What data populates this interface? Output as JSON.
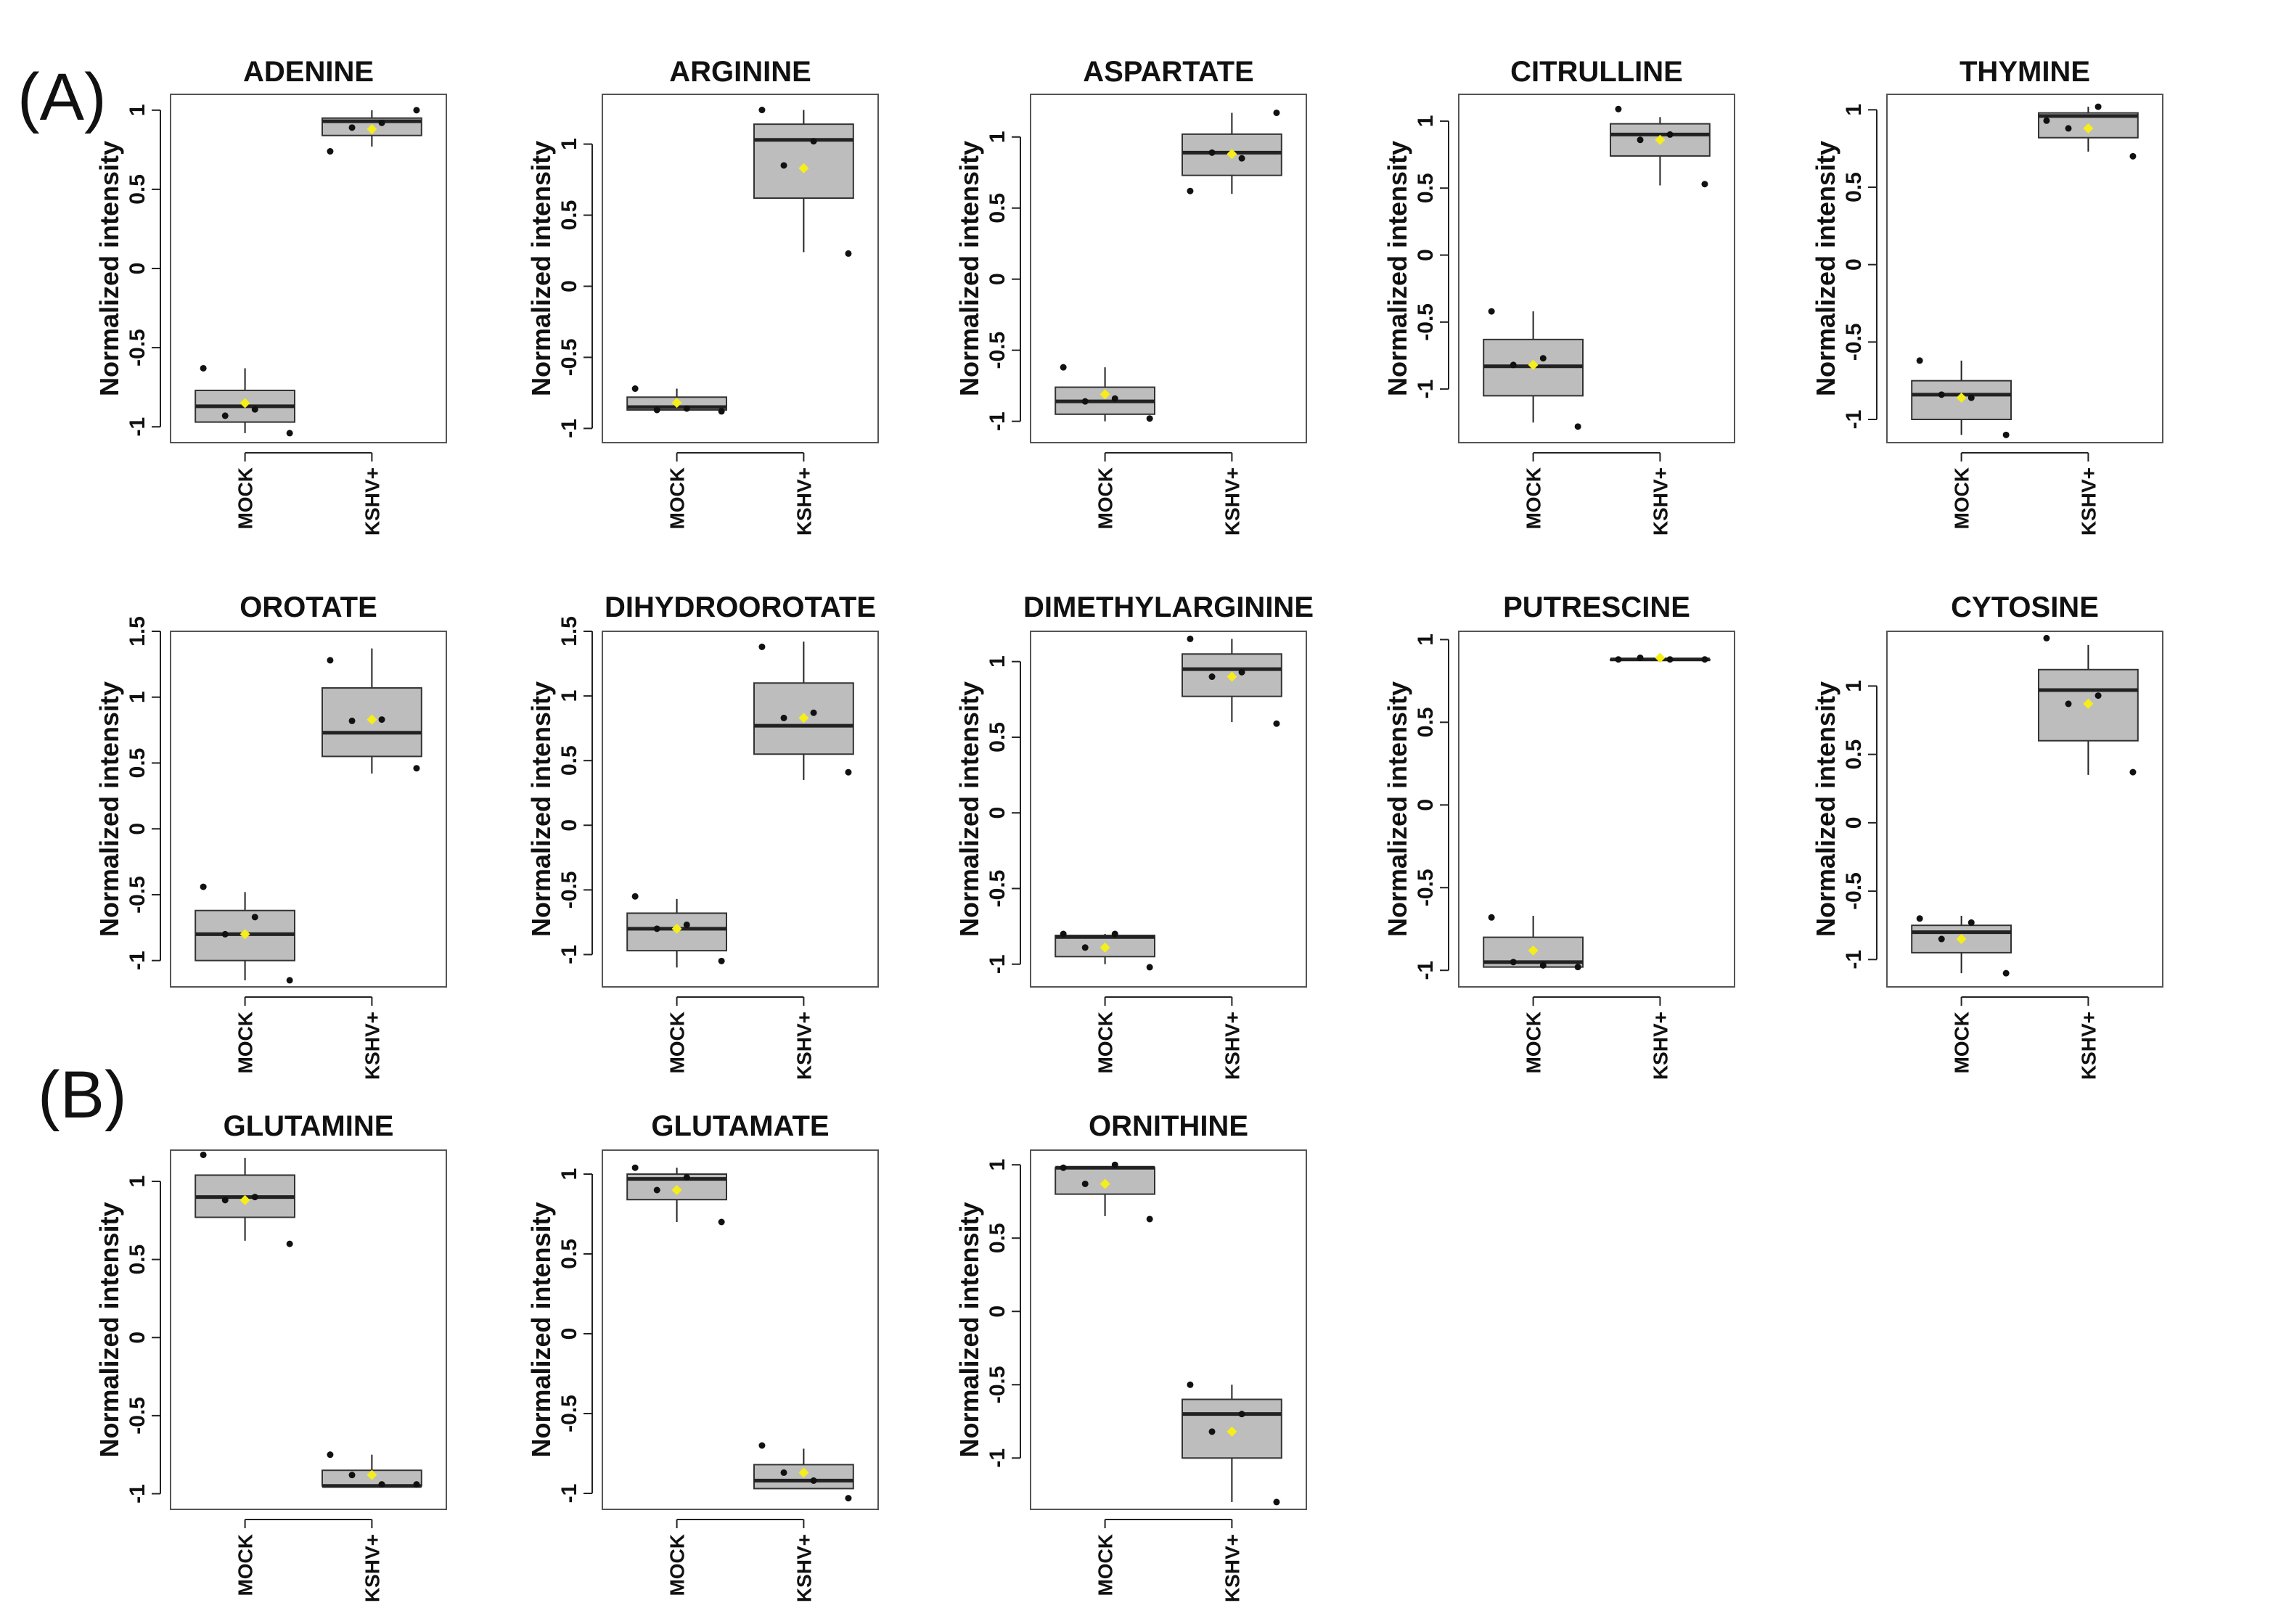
{
  "panel_labels": [
    "(A)",
    "(B)"
  ],
  "chart_data": [
    {
      "type": "box",
      "title": "ADENINE",
      "ylabel": "Normalized intensity",
      "ylim": [
        -1.1,
        1.1
      ],
      "yticks": [
        -1,
        -0.5,
        0,
        0.5,
        1
      ],
      "tick_labels": [
        "-1",
        "-0.5",
        "0",
        "0.5",
        "1"
      ],
      "categories": [
        "MOCK",
        "KSHV+"
      ],
      "boxes": [
        {
          "q1": -0.97,
          "median": -0.87,
          "q3": -0.77,
          "whisker_low": -1.04,
          "whisker_high": -0.63,
          "mean": -0.85,
          "points": [
            -0.63,
            -0.89,
            -1.04,
            -0.93
          ]
        },
        {
          "q1": 0.84,
          "median": 0.93,
          "q3": 0.95,
          "whisker_low": 0.77,
          "whisker_high": 1.0,
          "mean": 0.88,
          "points": [
            0.74,
            0.92,
            1.0,
            0.89
          ]
        }
      ]
    },
    {
      "type": "box",
      "title": "ARGININE",
      "ylabel": "Normalized intensity",
      "ylim": [
        -1.1,
        1.35
      ],
      "yticks": [
        -1,
        -0.5,
        0,
        0.5,
        1
      ],
      "tick_labels": [
        "-1",
        "-0.5",
        "0",
        "0.5",
        "1"
      ],
      "categories": [
        "MOCK",
        "KSHV+"
      ],
      "boxes": [
        {
          "q1": -0.87,
          "median": -0.85,
          "q3": -0.78,
          "whisker_low": -0.87,
          "whisker_high": -0.72,
          "mean": -0.82,
          "points": [
            -0.72,
            -0.86,
            -0.88,
            -0.87
          ]
        },
        {
          "q1": 0.62,
          "median": 1.03,
          "q3": 1.14,
          "whisker_low": 0.24,
          "whisker_high": 1.24,
          "mean": 0.83,
          "points": [
            1.24,
            1.02,
            0.23,
            0.85
          ]
        }
      ]
    },
    {
      "type": "box",
      "title": "ASPARTATE",
      "ylabel": "Normalized intensity",
      "ylim": [
        -1.15,
        1.3
      ],
      "yticks": [
        -1,
        -0.5,
        0,
        0.5,
        1
      ],
      "tick_labels": [
        "-1",
        "-0.5",
        "0",
        "0.5",
        "1"
      ],
      "categories": [
        "MOCK",
        "KSHV+"
      ],
      "boxes": [
        {
          "q1": -0.95,
          "median": -0.86,
          "q3": -0.76,
          "whisker_low": -1.0,
          "whisker_high": -0.62,
          "mean": -0.81,
          "points": [
            -0.62,
            -0.84,
            -0.98,
            -0.86
          ]
        },
        {
          "q1": 0.73,
          "median": 0.89,
          "q3": 1.02,
          "whisker_low": 0.6,
          "whisker_high": 1.17,
          "mean": 0.88,
          "points": [
            0.62,
            0.85,
            1.17,
            0.89
          ]
        }
      ]
    },
    {
      "type": "box",
      "title": "CITRULLINE",
      "ylabel": "Normalized intensity",
      "ylim": [
        -1.4,
        1.2
      ],
      "yticks": [
        -1,
        -0.5,
        0,
        0.5,
        1
      ],
      "tick_labels": [
        "-1",
        "-0.5",
        "0",
        "0.5",
        "1"
      ],
      "categories": [
        "MOCK",
        "KSHV+"
      ],
      "boxes": [
        {
          "q1": -1.05,
          "median": -0.83,
          "q3": -0.63,
          "whisker_low": -1.25,
          "whisker_high": -0.42,
          "mean": -0.82,
          "points": [
            -0.42,
            -0.77,
            -1.28,
            -0.82
          ]
        },
        {
          "q1": 0.74,
          "median": 0.9,
          "q3": 0.98,
          "whisker_low": 0.52,
          "whisker_high": 1.03,
          "mean": 0.86,
          "points": [
            1.09,
            0.9,
            0.53,
            0.86
          ]
        }
      ]
    },
    {
      "type": "box",
      "title": "THYMINE",
      "ylabel": "Normalized intensity",
      "ylim": [
        -1.15,
        1.1
      ],
      "yticks": [
        -1,
        -0.5,
        0,
        0.5,
        1
      ],
      "tick_labels": [
        "-1",
        "-0.5",
        "0",
        "0.5",
        "1"
      ],
      "categories": [
        "MOCK",
        "KSHV+"
      ],
      "boxes": [
        {
          "q1": -1.0,
          "median": -0.84,
          "q3": -0.75,
          "whisker_low": -1.1,
          "whisker_high": -0.62,
          "mean": -0.86,
          "points": [
            -0.62,
            -0.86,
            -1.1,
            -0.84
          ]
        },
        {
          "q1": 0.82,
          "median": 0.96,
          "q3": 0.98,
          "whisker_low": 0.73,
          "whisker_high": 1.02,
          "mean": 0.88,
          "points": [
            0.93,
            1.02,
            0.7,
            0.88
          ]
        }
      ]
    },
    {
      "type": "box",
      "title": "OROTATE",
      "ylabel": "Normalized intensity",
      "ylim": [
        -1.2,
        1.5
      ],
      "yticks": [
        -1,
        -0.5,
        0,
        0.5,
        1,
        1.5
      ],
      "tick_labels": [
        "-1",
        "-0.5",
        "0",
        "0.5",
        "1",
        "1.5"
      ],
      "categories": [
        "MOCK",
        "KSHV+"
      ],
      "boxes": [
        {
          "q1": -1.0,
          "median": -0.8,
          "q3": -0.62,
          "whisker_low": -1.15,
          "whisker_high": -0.48,
          "mean": -0.8,
          "points": [
            -0.44,
            -0.67,
            -1.15,
            -0.8
          ]
        },
        {
          "q1": 0.55,
          "median": 0.73,
          "q3": 1.07,
          "whisker_low": 0.42,
          "whisker_high": 1.37,
          "mean": 0.83,
          "points": [
            1.28,
            0.83,
            0.46,
            0.82
          ]
        }
      ]
    },
    {
      "type": "box",
      "title": "DIHYDROOROTATE",
      "ylabel": "Normalized intensity",
      "ylim": [
        -1.25,
        1.5
      ],
      "yticks": [
        -1,
        -0.5,
        0,
        0.5,
        1,
        1.5
      ],
      "tick_labels": [
        "-1",
        "-0.5",
        "0",
        "0.5",
        "1",
        "1.5"
      ],
      "categories": [
        "MOCK",
        "KSHV+"
      ],
      "boxes": [
        {
          "q1": -0.97,
          "median": -0.8,
          "q3": -0.68,
          "whisker_low": -1.1,
          "whisker_high": -0.57,
          "mean": -0.8,
          "points": [
            -0.55,
            -0.77,
            -1.05,
            -0.8
          ]
        },
        {
          "q1": 0.55,
          "median": 0.77,
          "q3": 1.1,
          "whisker_low": 0.35,
          "whisker_high": 1.42,
          "mean": 0.83,
          "points": [
            1.38,
            0.87,
            0.41,
            0.83
          ]
        }
      ]
    },
    {
      "type": "box",
      "title": "DIMETHYLARGININE",
      "ylabel": "Normalized intensity",
      "ylim": [
        -1.15,
        1.2
      ],
      "yticks": [
        -1,
        -0.5,
        0,
        0.5,
        1
      ],
      "tick_labels": [
        "-1",
        "-0.5",
        "0",
        "0.5",
        "1"
      ],
      "categories": [
        "MOCK",
        "KSHV+"
      ],
      "boxes": [
        {
          "q1": -0.95,
          "median": -0.82,
          "q3": -0.81,
          "whisker_low": -1.0,
          "whisker_high": -0.8,
          "mean": -0.89,
          "points": [
            -0.8,
            -0.8,
            -1.02,
            -0.89
          ]
        },
        {
          "q1": 0.77,
          "median": 0.95,
          "q3": 1.05,
          "whisker_low": 0.6,
          "whisker_high": 1.15,
          "mean": 0.9,
          "points": [
            1.15,
            0.93,
            0.59,
            0.9
          ]
        }
      ]
    },
    {
      "type": "box",
      "title": "PUTRESCINE",
      "ylabel": "Normalized intensity",
      "ylim": [
        -1.1,
        1.05
      ],
      "yticks": [
        -1,
        -0.5,
        0,
        0.5,
        1
      ],
      "tick_labels": [
        "-1",
        "-0.5",
        "0",
        "0.5",
        "1"
      ],
      "categories": [
        "MOCK",
        "KSHV+"
      ],
      "boxes": [
        {
          "q1": -0.98,
          "median": -0.95,
          "q3": -0.8,
          "whisker_low": -0.98,
          "whisker_high": -0.67,
          "mean": -0.88,
          "points": [
            -0.68,
            -0.97,
            -0.98,
            -0.95
          ]
        },
        {
          "q1": 0.88,
          "median": 0.88,
          "q3": 0.88,
          "whisker_low": 0.88,
          "whisker_high": 0.88,
          "mean": 0.89,
          "points": [
            0.88,
            0.88,
            0.88,
            0.89
          ]
        }
      ]
    },
    {
      "type": "box",
      "title": "CYTOSINE",
      "ylabel": "Normalized intensity",
      "ylim": [
        -1.2,
        1.4
      ],
      "yticks": [
        -1,
        -0.5,
        0,
        0.5,
        1
      ],
      "tick_labels": [
        "-1",
        "-0.5",
        "0",
        "0.5",
        "1"
      ],
      "categories": [
        "MOCK",
        "KSHV+"
      ],
      "boxes": [
        {
          "q1": -0.95,
          "median": -0.8,
          "q3": -0.75,
          "whisker_low": -1.1,
          "whisker_high": -0.68,
          "mean": -0.85,
          "points": [
            -0.7,
            -0.73,
            -1.1,
            -0.85
          ]
        },
        {
          "q1": 0.6,
          "median": 0.97,
          "q3": 1.12,
          "whisker_low": 0.35,
          "whisker_high": 1.3,
          "mean": 0.87,
          "points": [
            1.35,
            0.93,
            0.37,
            0.87
          ]
        }
      ]
    },
    {
      "type": "box",
      "title": "GLUTAMINE",
      "ylabel": "Normalized intensity",
      "ylim": [
        -1.1,
        1.2
      ],
      "yticks": [
        -1,
        -0.5,
        0,
        0.5,
        1
      ],
      "tick_labels": [
        "-1",
        "-0.5",
        "0",
        "0.5",
        "1"
      ],
      "categories": [
        "MOCK",
        "KSHV+"
      ],
      "boxes": [
        {
          "q1": 0.77,
          "median": 0.9,
          "q3": 1.04,
          "whisker_low": 0.62,
          "whisker_high": 1.15,
          "mean": 0.88,
          "points": [
            1.17,
            0.9,
            0.6,
            0.88
          ]
        },
        {
          "q1": -0.95,
          "median": -0.95,
          "q3": -0.85,
          "whisker_low": -0.95,
          "whisker_high": -0.75,
          "mean": -0.88,
          "points": [
            -0.75,
            -0.94,
            -0.94,
            -0.88
          ]
        }
      ]
    },
    {
      "type": "box",
      "title": "GLUTAMATE",
      "ylabel": "Normalized intensity",
      "ylim": [
        -1.1,
        1.15
      ],
      "yticks": [
        -1,
        -0.5,
        0,
        0.5,
        1
      ],
      "tick_labels": [
        "-1",
        "-0.5",
        "0",
        "0.5",
        "1"
      ],
      "categories": [
        "MOCK",
        "KSHV+"
      ],
      "boxes": [
        {
          "q1": 0.84,
          "median": 0.97,
          "q3": 1.0,
          "whisker_low": 0.7,
          "whisker_high": 1.04,
          "mean": 0.9,
          "points": [
            1.04,
            0.98,
            0.7,
            0.9
          ]
        },
        {
          "q1": -0.97,
          "median": -0.92,
          "q3": -0.82,
          "whisker_low": -0.97,
          "whisker_high": -0.72,
          "mean": -0.87,
          "points": [
            -0.7,
            -0.92,
            -1.03,
            -0.87
          ]
        }
      ]
    },
    {
      "type": "box",
      "title": "ORNITHINE",
      "ylabel": "Normalized intensity",
      "ylim": [
        -1.35,
        1.1
      ],
      "yticks": [
        -1,
        -0.5,
        0,
        0.5,
        1
      ],
      "tick_labels": [
        "-1",
        "-0.5",
        "0",
        "0.5",
        "1"
      ],
      "categories": [
        "MOCK",
        "KSHV+"
      ],
      "boxes": [
        {
          "q1": 0.8,
          "median": 0.98,
          "q3": 0.98,
          "whisker_low": 0.65,
          "whisker_high": 0.98,
          "mean": 0.87,
          "points": [
            0.98,
            1.0,
            0.63,
            0.87
          ]
        },
        {
          "q1": -1.0,
          "median": -0.7,
          "q3": -0.6,
          "whisker_low": -1.3,
          "whisker_high": -0.5,
          "mean": -0.82,
          "points": [
            -0.5,
            -0.7,
            -1.3,
            -0.82
          ]
        }
      ]
    }
  ]
}
